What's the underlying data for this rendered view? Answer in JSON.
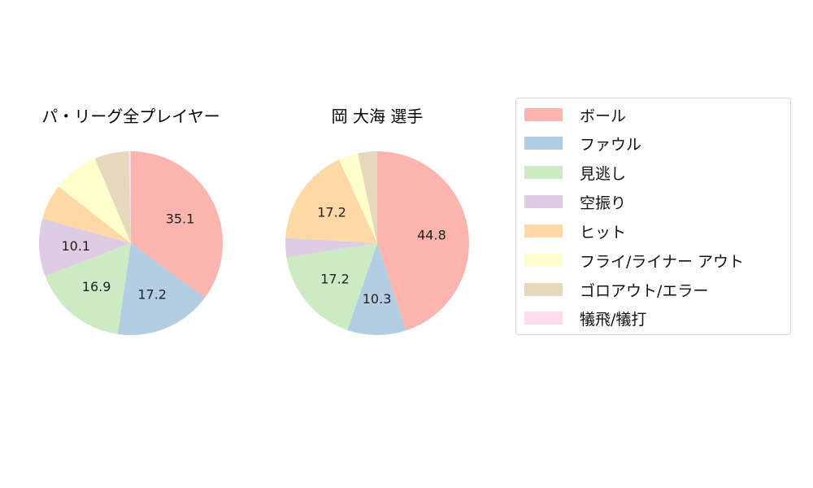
{
  "legend": {
    "items": [
      {
        "label": "ボール",
        "color": "#fbb4ae"
      },
      {
        "label": "ファウル",
        "color": "#b3cde3"
      },
      {
        "label": "見逃し",
        "color": "#ccebc5"
      },
      {
        "label": "空振り",
        "color": "#decbe4"
      },
      {
        "label": "ヒット",
        "color": "#fed9a6"
      },
      {
        "label": "フライ/ライナー アウト",
        "color": "#ffffcc"
      },
      {
        "label": "ゴロアウト/エラー",
        "color": "#e5d8bd"
      },
      {
        "label": "犠飛/犠打",
        "color": "#fddaec"
      }
    ]
  },
  "chart_data": [
    {
      "type": "pie",
      "title": "パ・リーグ全プレイヤー",
      "categories": [
        "ボール",
        "ファウル",
        "見逃し",
        "空振り",
        "ヒット",
        "フライ/ライナー アウト",
        "ゴロアウト/エラー",
        "犠飛/犠打"
      ],
      "values": [
        35.1,
        17.2,
        16.9,
        10.1,
        6.3,
        8.0,
        6.0,
        0.4
      ],
      "labels_shown": [
        "35.1",
        "17.2",
        "16.9",
        "10.1",
        "",
        "",
        "",
        ""
      ],
      "start_angle": 90,
      "direction": "clockwise",
      "colors": [
        "#fbb4ae",
        "#b3cde3",
        "#ccebc5",
        "#decbe4",
        "#fed9a6",
        "#ffffcc",
        "#e5d8bd",
        "#fddaec"
      ]
    },
    {
      "type": "pie",
      "title": "岡 大海  選手",
      "categories": [
        "ボール",
        "ファウル",
        "見逃し",
        "空振り",
        "ヒット",
        "フライ/ライナー アウト",
        "ゴロアウト/エラー",
        "犠飛/犠打"
      ],
      "values": [
        44.8,
        10.3,
        17.2,
        3.4,
        17.2,
        3.4,
        3.4,
        0.0
      ],
      "labels_shown": [
        "44.8",
        "10.3",
        "17.2",
        "",
        "17.2",
        "",
        "",
        ""
      ],
      "start_angle": 90,
      "direction": "clockwise",
      "colors": [
        "#fbb4ae",
        "#b3cde3",
        "#ccebc5",
        "#decbe4",
        "#fed9a6",
        "#ffffcc",
        "#e5d8bd",
        "#fddaec"
      ]
    }
  ]
}
